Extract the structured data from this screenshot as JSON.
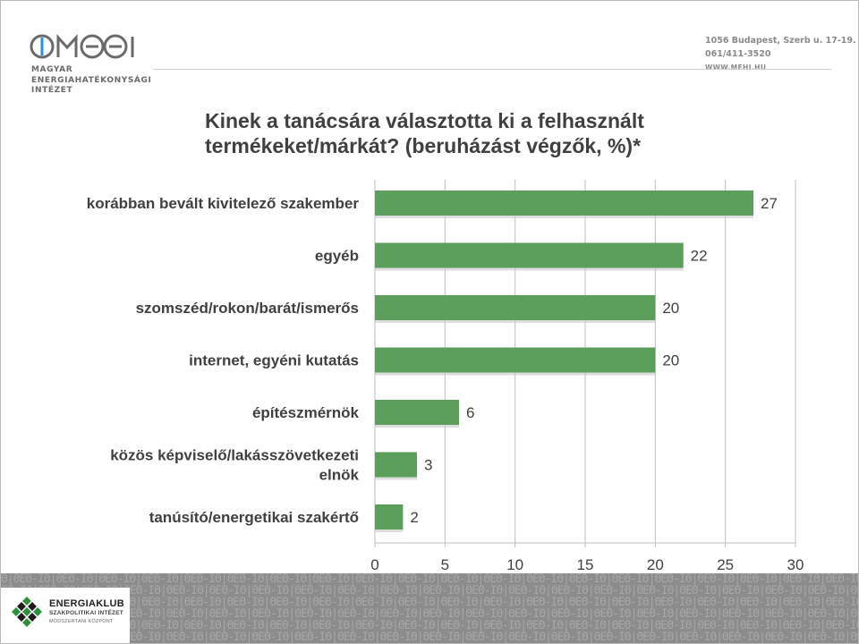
{
  "header": {
    "logo_mark": "MEHI",
    "logo_lines": [
      "MAGYAR",
      "ENERGIAHATÉKONYSÁGI",
      "INTÉZET"
    ],
    "address": "1056 Budapest, Szerb u. 17-19.",
    "phone": "061/411-3520",
    "website": "WWW.MEHI.HU"
  },
  "title_lines": [
    "Kinek a tanácsára választotta ki a felhasznált",
    "termékeket/márkát?  (beruházást végzők, %)*"
  ],
  "colors": {
    "bar": "#5c9e5c",
    "axis": "#bfbfbf",
    "text": "#404040",
    "footer": "#8c8c8c"
  },
  "chart_data": {
    "type": "bar",
    "orientation": "horizontal",
    "categories": [
      [
        "korábban bevált kivitelező szakember"
      ],
      [
        "egyéb"
      ],
      [
        "szomszéd/rokon/barát/ismerős"
      ],
      [
        "internet, egyéni kutatás"
      ],
      [
        "építészmérnök"
      ],
      [
        "közös képviselő/lakásszövetkezeti",
        "elnök"
      ],
      [
        "tanúsító/energetikai szakértő"
      ]
    ],
    "values": [
      27,
      22,
      20,
      20,
      6,
      3,
      2
    ],
    "xlim": [
      0,
      30
    ],
    "xticks": [
      "0",
      "5",
      "10",
      "15",
      "20",
      "25",
      "30"
    ],
    "grid": true,
    "data_labels": true
  },
  "footer": {
    "brand": "ENERGIAKLUB",
    "brand_sub1": "SZAKPOLITIKAI INTÉZET",
    "brand_sub2": "MÓDSZERTANI KÖZPONT",
    "pattern_unit": "Θ|ΘΕΘ-Ι"
  }
}
